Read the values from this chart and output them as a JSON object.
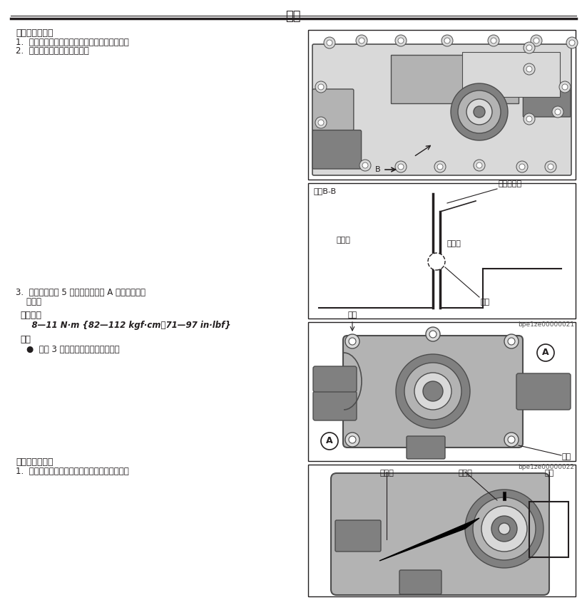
{
  "title": "机械",
  "section1_title": "出水口组装说明",
  "section1_item1": "1.  安装出水口垫圈，让垫圈凸缘朝向图示方向。",
  "section1_item2": "2.  暂时拧紧出水口安装螺栓。",
  "section2_step1": "3.  首先将图示的 5 个螺栓中的螺栓 A 拧紧到规定的",
  "section2_step2": "    扭矩。",
  "torque_title": "拧紧扭矩",
  "torque_value": "    8—11 N·m {82—112 kgf·cm，71—97 in·lbf}",
  "note_title": "说明",
  "note_item": "    ●  剩下 3 个螺栓的拧紧顺序可选择。",
  "section3_title": "节温器组装说明",
  "section3_item1": "1.  安装节温器，使摇动销与出水口的凹槽对齐。",
  "ref1": "bpe1ze00000021",
  "ref2": "bpe1ze00000022",
  "bg_color": "#ffffff",
  "text_color": "#231f20",
  "gray_dark": "#4d4d4d",
  "gray_mid": "#808080",
  "gray_light": "#b3b3b3",
  "gray_very_light": "#d9d9d9",
  "line_color": "#231f20"
}
